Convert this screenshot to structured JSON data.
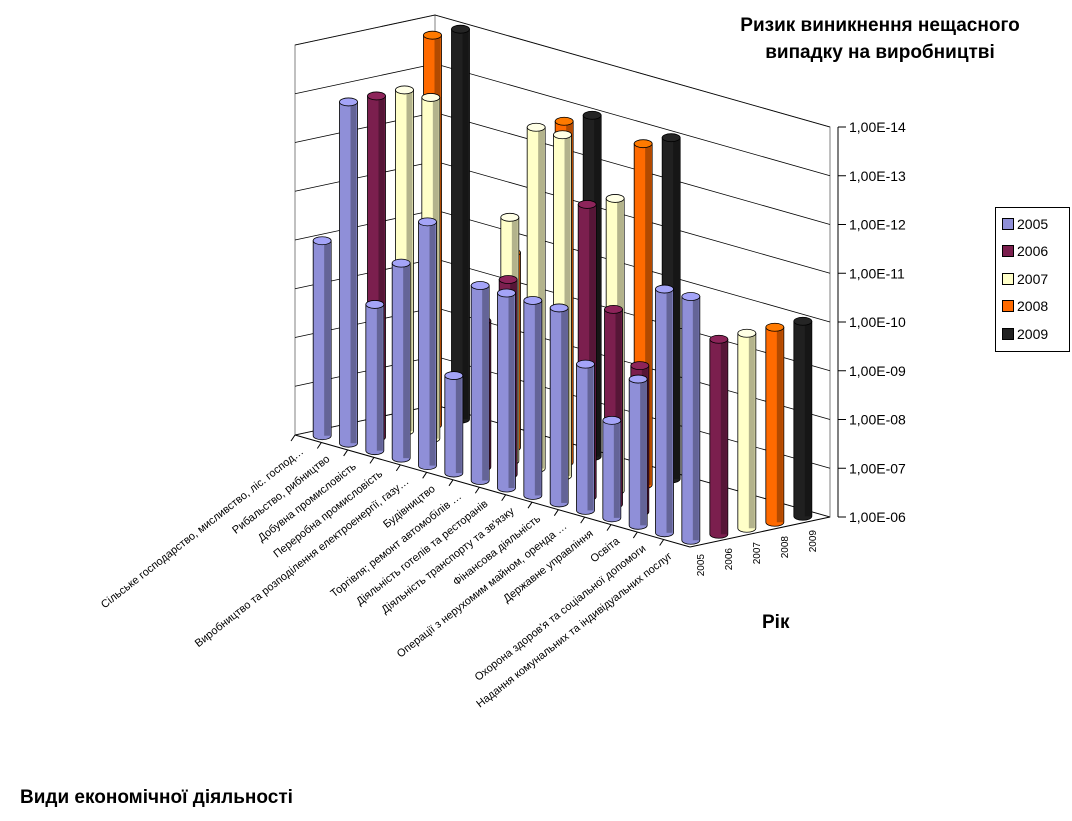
{
  "chart_data": {
    "type": "bar",
    "chart_subtype": "3d-clustered-bar",
    "title": "Ризик виникнення нещасного випадку на виробництві",
    "z_axis_title": "Ризик виникнення нещасного випадку на виробництві",
    "y_axis_title": "Рік",
    "x_axis_title": "Види економічної діяльності",
    "scale": "log",
    "z_ticks": [
      "1,00E-06",
      "1,00E-07",
      "1,00E-08",
      "1,00E-09",
      "1,00E-10",
      "1,00E-11",
      "1,00E-12",
      "1,00E-13",
      "1,00E-14"
    ],
    "ylim_exponents": [
      -6,
      -14
    ],
    "year_ticks": [
      "2005",
      "2006",
      "2007",
      "2008",
      "2009"
    ],
    "categories": [
      "Сільське господарство, мисливство, ліс. господ…",
      "Рибальство, рибництво",
      "Добувна промисловість",
      "Переробна промисловість",
      "Виробництво та розподілення електроенергії, газу…",
      "Будівництво",
      "Торгівля; ремонт автомобілів …",
      "Діяльність готелів та ресторанів",
      "Діяльність транспорту та зв'язку",
      "Фінансова діяльність",
      "Операції з нерухомим майном, оренда …",
      "Державне управління",
      "Освіта",
      "Охорона здоров'я та соціальної допомоги",
      "Надання комунальних та індивідуальних послуг"
    ],
    "series": [
      {
        "name": "2005",
        "color": "#8f8fd8",
        "values": [
          1e-10,
          1e-13,
          1e-09,
          1e-10,
          1e-11,
          1e-08,
          1e-10,
          1e-10,
          1e-10,
          1e-10,
          1e-09,
          1e-08,
          1e-09,
          1e-11,
          1e-11
        ]
      },
      {
        "name": "2006",
        "color": "#7b1f4e",
        "values": [
          null,
          1e-13,
          null,
          null,
          null,
          1e-09,
          1e-10,
          null,
          null,
          1e-12,
          1e-10,
          1e-09,
          null,
          null,
          1e-10
        ]
      },
      {
        "name": "2007",
        "color": "#ffffc8",
        "values": [
          null,
          1e-13,
          1e-13,
          null,
          null,
          1e-11,
          1e-13,
          1e-13,
          null,
          1e-12,
          null,
          null,
          null,
          null,
          1e-10
        ]
      },
      {
        "name": "2008",
        "color": "#ff6a00",
        "values": [
          null,
          1e-14,
          null,
          null,
          1e-10,
          null,
          1e-13,
          null,
          null,
          1e-13,
          null,
          null,
          null,
          null,
          1e-10
        ]
      },
      {
        "name": "2009",
        "color": "#202020",
        "values": [
          null,
          1e-14,
          null,
          null,
          null,
          null,
          1e-13,
          null,
          null,
          1e-13,
          null,
          null,
          null,
          null,
          1e-10
        ]
      }
    ]
  },
  "legend": {
    "items": [
      {
        "label": "2005",
        "color": "#8f8fd8"
      },
      {
        "label": "2006",
        "color": "#7b1f4e"
      },
      {
        "label": "2007",
        "color": "#ffffc8"
      },
      {
        "label": "2008",
        "color": "#ff6a00"
      },
      {
        "label": "2009",
        "color": "#202020"
      }
    ]
  }
}
